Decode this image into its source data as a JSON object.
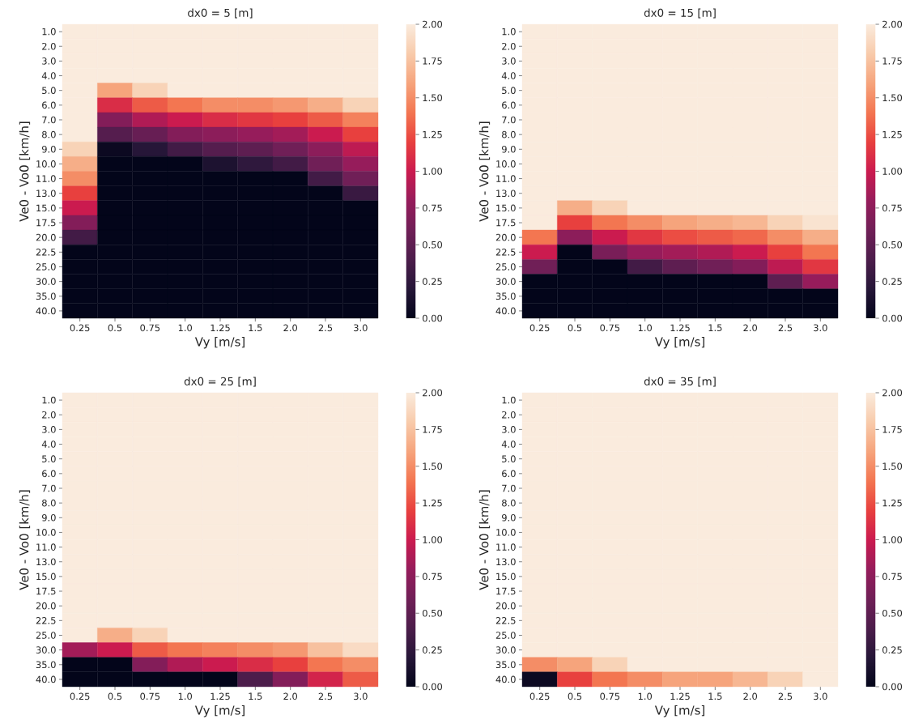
{
  "chart_data": [
    {
      "type": "heatmap",
      "title": "dx0 = 5  [m]",
      "xlabel": "Vy [m/s]",
      "ylabel": "Ve0 - Vo0 [km/h]",
      "categories": [
        "0.25",
        "0.5",
        "0.75",
        "1.0",
        "1.25",
        "1.5",
        "2.0",
        "2.5",
        "3.0"
      ],
      "y_categories": [
        "1.0",
        "2.0",
        "3.0",
        "4.0",
        "5.0",
        "6.0",
        "7.0",
        "8.0",
        "9.0",
        "10.0",
        "11.0",
        "13.0",
        "15.0",
        "17.5",
        "20.0",
        "22.5",
        "25.0",
        "30.0",
        "35.0",
        "40.0"
      ],
      "cells": [
        [
          2,
          2,
          2,
          2,
          2,
          2,
          2,
          2,
          2
        ],
        [
          2,
          2,
          2,
          2,
          2,
          2,
          2,
          2,
          2
        ],
        [
          2,
          2,
          2,
          2,
          2,
          2,
          2,
          2,
          2
        ],
        [
          2,
          2,
          2,
          2,
          2,
          2,
          2,
          2,
          2
        ],
        [
          2,
          1.6,
          1.85,
          2,
          2,
          2,
          2,
          2,
          2
        ],
        [
          2,
          1.1,
          1.3,
          1.4,
          1.5,
          1.5,
          1.55,
          1.65,
          1.85
        ],
        [
          2,
          0.7,
          0.9,
          1.0,
          1.1,
          1.15,
          1.2,
          1.3,
          1.45
        ],
        [
          2,
          0.45,
          0.55,
          0.7,
          0.75,
          0.8,
          0.85,
          1.0,
          1.2
        ],
        [
          1.85,
          0.05,
          0.2,
          0.35,
          0.45,
          0.5,
          0.6,
          0.75,
          0.95
        ],
        [
          1.65,
          0,
          0,
          0,
          0.15,
          0.25,
          0.35,
          0.6,
          0.8
        ],
        [
          1.5,
          0,
          0,
          0,
          0,
          0,
          0,
          0.35,
          0.6
        ],
        [
          1.2,
          0,
          0,
          0,
          0,
          0,
          0,
          0,
          0.3
        ],
        [
          1.0,
          0,
          0,
          0,
          0,
          0,
          0,
          0,
          0
        ],
        [
          0.7,
          0,
          0,
          0,
          0,
          0,
          0,
          0,
          0
        ],
        [
          0.35,
          0,
          0,
          0,
          0,
          0,
          0,
          0,
          0
        ],
        [
          0,
          0,
          0,
          0,
          0,
          0,
          0,
          0,
          0
        ],
        [
          0,
          0,
          0,
          0,
          0,
          0,
          0,
          0,
          0
        ],
        [
          0,
          0,
          0,
          0,
          0,
          0,
          0,
          0,
          0
        ],
        [
          0,
          0,
          0,
          0,
          0,
          0,
          0,
          0,
          0
        ],
        [
          0,
          0,
          0,
          0,
          0,
          0,
          0,
          0,
          0
        ]
      ],
      "clim": [
        0,
        2
      ],
      "cticks": [
        {
          "value": 0,
          "label": "0.00"
        },
        {
          "value": 0.25,
          "label": "0.25"
        },
        {
          "value": 0.5,
          "label": "0.50"
        },
        {
          "value": 0.75,
          "label": "0.75"
        },
        {
          "value": 1,
          "label": "1.00"
        },
        {
          "value": 1.25,
          "label": "1.25"
        },
        {
          "value": 1.5,
          "label": "1.50"
        },
        {
          "value": 1.75,
          "label": "1.75"
        },
        {
          "value": 2,
          "label": "2.00"
        }
      ]
    },
    {
      "type": "heatmap",
      "title": "dx0 = 15  [m]",
      "xlabel": "Vy [m/s]",
      "ylabel": "Ve0 - Vo0 [km/h]",
      "categories": [
        "0.25",
        "0.5",
        "0.75",
        "1.0",
        "1.25",
        "1.5",
        "2.0",
        "2.5",
        "3.0"
      ],
      "y_categories": [
        "1.0",
        "2.0",
        "3.0",
        "4.0",
        "5.0",
        "6.0",
        "7.0",
        "8.0",
        "9.0",
        "10.0",
        "11.0",
        "13.0",
        "15.0",
        "17.5",
        "20.0",
        "22.5",
        "25.0",
        "30.0",
        "35.0",
        "40.0"
      ],
      "cells": [
        [
          2,
          2,
          2,
          2,
          2,
          2,
          2,
          2,
          2
        ],
        [
          2,
          2,
          2,
          2,
          2,
          2,
          2,
          2,
          2
        ],
        [
          2,
          2,
          2,
          2,
          2,
          2,
          2,
          2,
          2
        ],
        [
          2,
          2,
          2,
          2,
          2,
          2,
          2,
          2,
          2
        ],
        [
          2,
          2,
          2,
          2,
          2,
          2,
          2,
          2,
          2
        ],
        [
          2,
          2,
          2,
          2,
          2,
          2,
          2,
          2,
          2
        ],
        [
          2,
          2,
          2,
          2,
          2,
          2,
          2,
          2,
          2
        ],
        [
          2,
          2,
          2,
          2,
          2,
          2,
          2,
          2,
          2
        ],
        [
          2,
          2,
          2,
          2,
          2,
          2,
          2,
          2,
          2
        ],
        [
          2,
          2,
          2,
          2,
          2,
          2,
          2,
          2,
          2
        ],
        [
          2,
          2,
          2,
          2,
          2,
          2,
          2,
          2,
          2
        ],
        [
          2,
          2,
          2,
          2,
          2,
          2,
          2,
          2,
          2
        ],
        [
          2,
          1.65,
          1.85,
          2,
          2,
          2,
          2,
          2,
          2
        ],
        [
          2,
          1.2,
          1.4,
          1.5,
          1.6,
          1.65,
          1.7,
          1.85,
          1.95
        ],
        [
          1.4,
          0.75,
          1.0,
          1.15,
          1.25,
          1.3,
          1.35,
          1.5,
          1.65
        ],
        [
          1.0,
          0,
          0.65,
          0.8,
          0.85,
          0.9,
          1.0,
          1.2,
          1.4
        ],
        [
          0.6,
          0,
          0,
          0.35,
          0.5,
          0.6,
          0.7,
          0.95,
          1.15
        ],
        [
          0,
          0,
          0,
          0,
          0,
          0,
          0,
          0.5,
          0.8
        ],
        [
          0,
          0,
          0,
          0,
          0,
          0,
          0,
          0,
          0
        ],
        [
          0,
          0,
          0,
          0,
          0,
          0,
          0,
          0,
          0
        ]
      ],
      "clim": [
        0,
        2
      ],
      "cticks": [
        {
          "value": 0,
          "label": "0.00"
        },
        {
          "value": 0.25,
          "label": "0.25"
        },
        {
          "value": 0.5,
          "label": "0.50"
        },
        {
          "value": 0.75,
          "label": "0.75"
        },
        {
          "value": 1,
          "label": "1.00"
        },
        {
          "value": 1.25,
          "label": "1.25"
        },
        {
          "value": 1.5,
          "label": "1.50"
        },
        {
          "value": 1.75,
          "label": "1.75"
        },
        {
          "value": 2,
          "label": "2.00"
        }
      ]
    },
    {
      "type": "heatmap",
      "title": "dx0 = 25  [m]",
      "xlabel": "Vy [m/s]",
      "ylabel": "Ve0 - Vo0 [km/h]",
      "categories": [
        "0.25",
        "0.5",
        "0.75",
        "1.0",
        "1.25",
        "1.5",
        "2.0",
        "2.5",
        "3.0"
      ],
      "y_categories": [
        "1.0",
        "2.0",
        "3.0",
        "4.0",
        "5.0",
        "6.0",
        "7.0",
        "8.0",
        "9.0",
        "10.0",
        "11.0",
        "13.0",
        "15.0",
        "17.5",
        "20.0",
        "22.5",
        "25.0",
        "30.0",
        "35.0",
        "40.0"
      ],
      "cells": [
        [
          2,
          2,
          2,
          2,
          2,
          2,
          2,
          2,
          2
        ],
        [
          2,
          2,
          2,
          2,
          2,
          2,
          2,
          2,
          2
        ],
        [
          2,
          2,
          2,
          2,
          2,
          2,
          2,
          2,
          2
        ],
        [
          2,
          2,
          2,
          2,
          2,
          2,
          2,
          2,
          2
        ],
        [
          2,
          2,
          2,
          2,
          2,
          2,
          2,
          2,
          2
        ],
        [
          2,
          2,
          2,
          2,
          2,
          2,
          2,
          2,
          2
        ],
        [
          2,
          2,
          2,
          2,
          2,
          2,
          2,
          2,
          2
        ],
        [
          2,
          2,
          2,
          2,
          2,
          2,
          2,
          2,
          2
        ],
        [
          2,
          2,
          2,
          2,
          2,
          2,
          2,
          2,
          2
        ],
        [
          2,
          2,
          2,
          2,
          2,
          2,
          2,
          2,
          2
        ],
        [
          2,
          2,
          2,
          2,
          2,
          2,
          2,
          2,
          2
        ],
        [
          2,
          2,
          2,
          2,
          2,
          2,
          2,
          2,
          2
        ],
        [
          2,
          2,
          2,
          2,
          2,
          2,
          2,
          2,
          2
        ],
        [
          2,
          2,
          2,
          2,
          2,
          2,
          2,
          2,
          2
        ],
        [
          2,
          2,
          2,
          2,
          2,
          2,
          2,
          2,
          2
        ],
        [
          2,
          2,
          2,
          2,
          2,
          2,
          2,
          2,
          2
        ],
        [
          2,
          1.65,
          1.85,
          2,
          2,
          2,
          2,
          2,
          2
        ],
        [
          0.85,
          1.0,
          1.3,
          1.4,
          1.45,
          1.5,
          1.55,
          1.75,
          1.9
        ],
        [
          0,
          0,
          0.7,
          0.9,
          1.0,
          1.1,
          1.2,
          1.4,
          1.5
        ],
        [
          0,
          0,
          0,
          0,
          0,
          0.4,
          0.7,
          1.05,
          1.3
        ]
      ],
      "clim": [
        0,
        2
      ],
      "cticks": [
        {
          "value": 0,
          "label": "0.00"
        },
        {
          "value": 0.25,
          "label": "0.25"
        },
        {
          "value": 0.5,
          "label": "0.50"
        },
        {
          "value": 0.75,
          "label": "0.75"
        },
        {
          "value": 1,
          "label": "1.00"
        },
        {
          "value": 1.25,
          "label": "1.25"
        },
        {
          "value": 1.5,
          "label": "1.50"
        },
        {
          "value": 1.75,
          "label": "1.75"
        },
        {
          "value": 2,
          "label": "2.00"
        }
      ]
    },
    {
      "type": "heatmap",
      "title": "dx0 = 35  [m]",
      "xlabel": "Vy [m/s]",
      "ylabel": "Ve0 - Vo0 [km/h]",
      "categories": [
        "0.25",
        "0.5",
        "0.75",
        "1.0",
        "1.25",
        "1.5",
        "2.0",
        "2.5",
        "3.0"
      ],
      "y_categories": [
        "1.0",
        "2.0",
        "3.0",
        "4.0",
        "5.0",
        "6.0",
        "7.0",
        "8.0",
        "9.0",
        "10.0",
        "11.0",
        "13.0",
        "15.0",
        "17.5",
        "20.0",
        "22.5",
        "25.0",
        "30.0",
        "35.0",
        "40.0"
      ],
      "cells": [
        [
          2,
          2,
          2,
          2,
          2,
          2,
          2,
          2,
          2
        ],
        [
          2,
          2,
          2,
          2,
          2,
          2,
          2,
          2,
          2
        ],
        [
          2,
          2,
          2,
          2,
          2,
          2,
          2,
          2,
          2
        ],
        [
          2,
          2,
          2,
          2,
          2,
          2,
          2,
          2,
          2
        ],
        [
          2,
          2,
          2,
          2,
          2,
          2,
          2,
          2,
          2
        ],
        [
          2,
          2,
          2,
          2,
          2,
          2,
          2,
          2,
          2
        ],
        [
          2,
          2,
          2,
          2,
          2,
          2,
          2,
          2,
          2
        ],
        [
          2,
          2,
          2,
          2,
          2,
          2,
          2,
          2,
          2
        ],
        [
          2,
          2,
          2,
          2,
          2,
          2,
          2,
          2,
          2
        ],
        [
          2,
          2,
          2,
          2,
          2,
          2,
          2,
          2,
          2
        ],
        [
          2,
          2,
          2,
          2,
          2,
          2,
          2,
          2,
          2
        ],
        [
          2,
          2,
          2,
          2,
          2,
          2,
          2,
          2,
          2
        ],
        [
          2,
          2,
          2,
          2,
          2,
          2,
          2,
          2,
          2
        ],
        [
          2,
          2,
          2,
          2,
          2,
          2,
          2,
          2,
          2
        ],
        [
          2,
          2,
          2,
          2,
          2,
          2,
          2,
          2,
          2
        ],
        [
          2,
          2,
          2,
          2,
          2,
          2,
          2,
          2,
          2
        ],
        [
          2,
          2,
          2,
          2,
          2,
          2,
          2,
          2,
          2
        ],
        [
          2,
          2,
          2,
          2,
          2,
          2,
          2,
          2,
          2
        ],
        [
          1.5,
          1.6,
          1.85,
          2,
          2,
          2,
          2,
          2,
          2
        ],
        [
          0.05,
          1.2,
          1.4,
          1.5,
          1.6,
          1.6,
          1.7,
          1.85,
          2
        ]
      ],
      "clim": [
        0,
        2
      ],
      "cticks": [
        {
          "value": 0,
          "label": "0.00"
        },
        {
          "value": 0.25,
          "label": "0.25"
        },
        {
          "value": 0.5,
          "label": "0.50"
        },
        {
          "value": 0.75,
          "label": "0.75"
        },
        {
          "value": 1,
          "label": "1.00"
        },
        {
          "value": 1.25,
          "label": "1.25"
        },
        {
          "value": 1.5,
          "label": "1.50"
        },
        {
          "value": 1.75,
          "label": "1.75"
        },
        {
          "value": 2,
          "label": "2.00"
        }
      ]
    }
  ]
}
